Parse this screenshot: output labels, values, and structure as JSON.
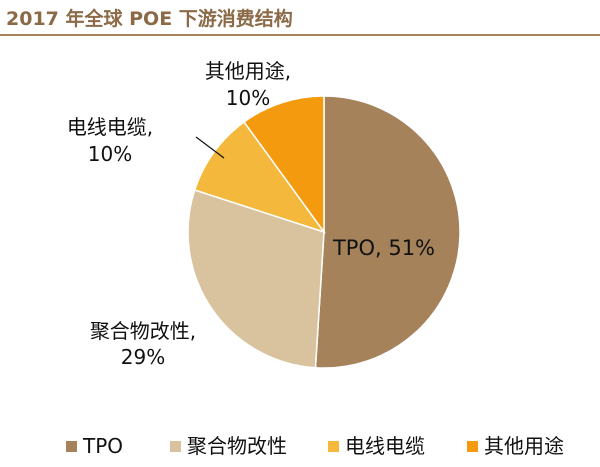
{
  "chart_data": {
    "type": "pie",
    "title": "2017 年全球 POE 下游消费结构",
    "slices": [
      {
        "name": "TPO",
        "value": 51,
        "label": "TPO, 51%",
        "color": "#A5825A"
      },
      {
        "name": "聚合物改性",
        "value": 29,
        "label_line1": "聚合物改性,",
        "label_line2": "29%",
        "color": "#D9C39F"
      },
      {
        "name": "电线电缆",
        "value": 10,
        "label_line1": "电线电缆,",
        "label_line2": "10%",
        "color": "#F4B83C"
      },
      {
        "name": "其他用途",
        "value": 10,
        "label_line1": "其他用途,",
        "label_line2": "10%",
        "color": "#F39A0E"
      }
    ],
    "legend": [
      "TPO",
      "聚合物改性",
      "电线电缆",
      "其他用途"
    ],
    "legend_position": "bottom"
  }
}
